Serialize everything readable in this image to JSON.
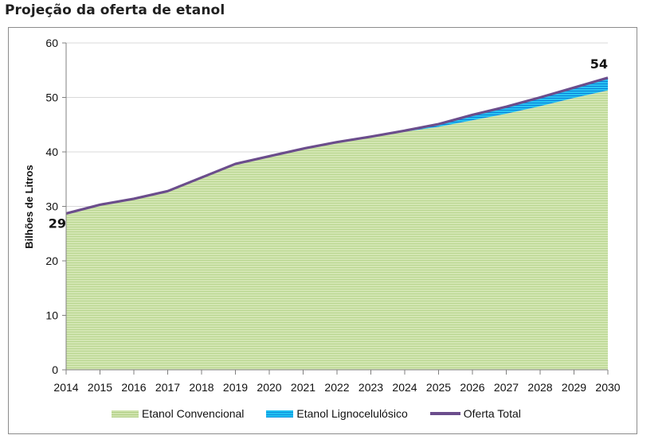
{
  "title": "Projeção da oferta de etanol",
  "chart_data": {
    "type": "area",
    "ylabel": "Bilhões de Litros",
    "xlabel": "",
    "ylim": [
      0,
      60
    ],
    "yticks": [
      0,
      10,
      20,
      30,
      40,
      50,
      60
    ],
    "grid": "horizontal",
    "legend_position": "bottom",
    "categories": [
      "2014",
      "2015",
      "2016",
      "2017",
      "2018",
      "2019",
      "2020",
      "2021",
      "2022",
      "2023",
      "2024",
      "2025",
      "2026",
      "2027",
      "2028",
      "2029",
      "2030"
    ],
    "series": [
      {
        "name": "Etanol Convencional",
        "color": "#cfe3ad",
        "values": [
          28.7,
          30.3,
          31.4,
          32.8,
          35.3,
          37.8,
          39.2,
          40.6,
          41.8,
          42.8,
          43.7,
          44.6,
          45.8,
          47.0,
          48.4,
          49.9,
          51.3
        ]
      },
      {
        "name": "Etanol Lignocelulósico",
        "color": "#20c0f0",
        "values": [
          0,
          0,
          0,
          0,
          0,
          0,
          0,
          0,
          0,
          0,
          0.2,
          0.5,
          1.0,
          1.3,
          1.6,
          1.9,
          2.3
        ]
      },
      {
        "name": "Oferta Total",
        "color": "#6b4d8c",
        "values": [
          28.7,
          30.3,
          31.4,
          32.8,
          35.3,
          37.8,
          39.2,
          40.6,
          41.8,
          42.8,
          43.9,
          45.1,
          46.8,
          48.3,
          50.0,
          51.8,
          53.6
        ]
      }
    ],
    "annotations": [
      {
        "label": "29",
        "category": "2014"
      },
      {
        "label": "54",
        "category": "2030"
      }
    ]
  }
}
